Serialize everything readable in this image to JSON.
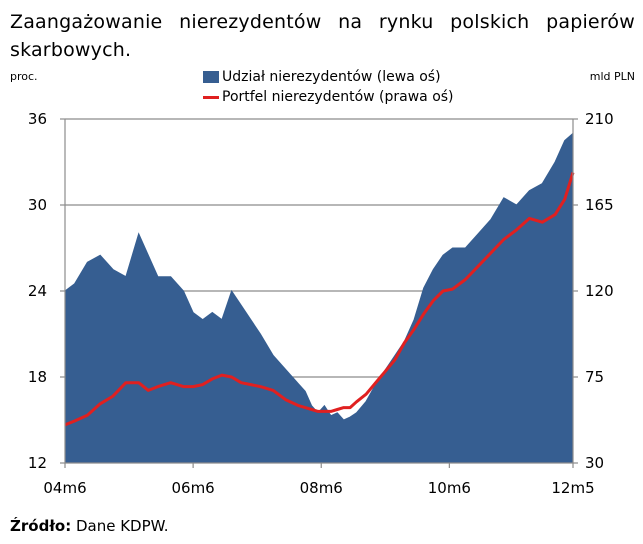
{
  "title": "Zaangażowanie nierezydentów na rynku polskich papierów skarbowych.",
  "left_unit": "proc.",
  "right_unit": "mld PLN",
  "source_label": "Źródło:",
  "source_text": "Dane KDPW.",
  "colors": {
    "area": "#365e91",
    "line": "#e02020"
  },
  "chart_data": {
    "type": "area",
    "legend": [
      {
        "name": "Udział nierezydentów (lewa oś)",
        "type": "area"
      },
      {
        "name": "Portfel nierezydentów (prawa oś)",
        "type": "line"
      }
    ],
    "legend_position": "top",
    "x_ticks": [
      "04m6",
      "06m6",
      "08m6",
      "10m6",
      "12m5"
    ],
    "y_left": {
      "ticks": [
        12,
        18,
        24,
        30,
        36
      ],
      "lim": [
        12,
        36
      ]
    },
    "y_right": {
      "ticks": [
        30,
        75,
        120,
        165,
        210
      ],
      "lim": [
        30,
        210
      ]
    },
    "gridlines": true,
    "series": [
      {
        "name": "Udział nierezydentów (lewa oś)",
        "axis": "left",
        "x": [
          2004.45,
          2004.6,
          2004.8,
          2005.0,
          2005.2,
          2005.4,
          2005.6,
          2005.75,
          2005.9,
          2006.1,
          2006.3,
          2006.45,
          2006.6,
          2006.75,
          2006.9,
          2007.05,
          2007.2,
          2007.35,
          2007.5,
          2007.7,
          2007.9,
          2008.1,
          2008.2,
          2008.3,
          2008.4,
          2008.5,
          2008.6,
          2008.7,
          2008.8,
          2008.9,
          2009.0,
          2009.15,
          2009.3,
          2009.45,
          2009.6,
          2009.75,
          2009.9,
          2010.05,
          2010.2,
          2010.35,
          2010.5,
          2010.7,
          2010.9,
          2011.1,
          2011.3,
          2011.5,
          2011.7,
          2011.9,
          2012.1,
          2012.25,
          2012.38
        ],
        "values": [
          24,
          24.5,
          26,
          26.5,
          25.5,
          25,
          28,
          26.5,
          25,
          25,
          24,
          22.5,
          22,
          22.5,
          22,
          24,
          23,
          22,
          21,
          19.5,
          18.5,
          17.5,
          17,
          16,
          15.5,
          16,
          15.3,
          15.5,
          15,
          15.2,
          15.5,
          16.3,
          17.5,
          18.5,
          19.5,
          20.5,
          22,
          24.2,
          25.5,
          26.5,
          27,
          27,
          28,
          29,
          30.5,
          30,
          31,
          31.5,
          33,
          34.5,
          35
        ]
      },
      {
        "name": "Portfel nierezydentów (prawa oś)",
        "axis": "right",
        "x": [
          2004.45,
          2004.6,
          2004.8,
          2005.0,
          2005.2,
          2005.4,
          2005.6,
          2005.75,
          2005.9,
          2006.1,
          2006.3,
          2006.45,
          2006.6,
          2006.75,
          2006.9,
          2007.05,
          2007.2,
          2007.35,
          2007.5,
          2007.7,
          2007.9,
          2008.1,
          2008.2,
          2008.3,
          2008.4,
          2008.5,
          2008.6,
          2008.7,
          2008.8,
          2008.9,
          2009.0,
          2009.15,
          2009.3,
          2009.45,
          2009.6,
          2009.75,
          2009.9,
          2010.05,
          2010.2,
          2010.35,
          2010.5,
          2010.7,
          2010.9,
          2011.1,
          2011.3,
          2011.5,
          2011.7,
          2011.9,
          2012.1,
          2012.25,
          2012.38
        ],
        "values": [
          50,
          52,
          55,
          61,
          65,
          72,
          72,
          68,
          70,
          72,
          70,
          70,
          71,
          74,
          76,
          75,
          72,
          71,
          70,
          68,
          63,
          60,
          59,
          58,
          57,
          57,
          57,
          58,
          59,
          59,
          62,
          66,
          72,
          78,
          84,
          93,
          100,
          108,
          115,
          120,
          121,
          126,
          133,
          140,
          147,
          152,
          158,
          156,
          160,
          168,
          182
        ]
      }
    ]
  }
}
